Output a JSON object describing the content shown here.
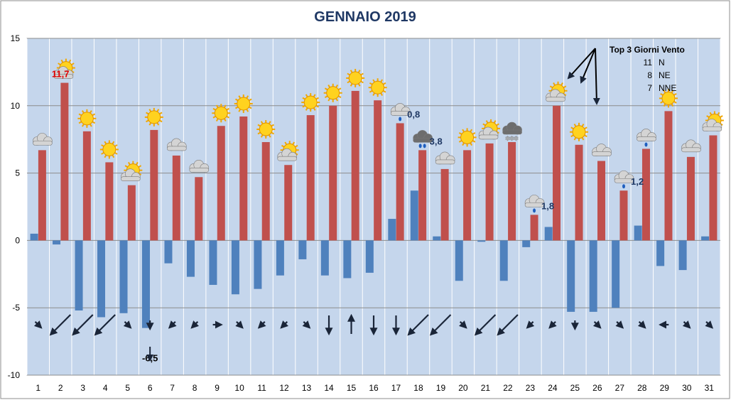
{
  "chart_data": {
    "type": "bar",
    "title": "GENNAIO 2019",
    "categories": [
      "1",
      "2",
      "3",
      "4",
      "5",
      "6",
      "7",
      "8",
      "9",
      "10",
      "11",
      "12",
      "13",
      "14",
      "15",
      "16",
      "17",
      "18",
      "19",
      "20",
      "21",
      "22",
      "23",
      "24",
      "25",
      "26",
      "27",
      "28",
      "29",
      "30",
      "31"
    ],
    "series": [
      {
        "values": [
          0.5,
          -0.3,
          -5.2,
          -5.7,
          -5.4,
          -6.5,
          -1.7,
          -2.7,
          -3.3,
          -4.0,
          -3.6,
          -2.6,
          -1.4,
          -2.6,
          -2.8,
          -2.4,
          1.6,
          3.7,
          0.3,
          -3.0,
          -0.1,
          -3.0,
          -0.5,
          1.0,
          -5.3,
          -5.3,
          -5.0,
          1.1,
          -1.9,
          -2.2,
          0.3
        ]
      },
      {
        "values": [
          6.7,
          11.7,
          8.1,
          5.8,
          4.1,
          8.2,
          6.3,
          4.7,
          8.5,
          9.2,
          7.3,
          5.6,
          9.3,
          10.0,
          11.1,
          10.4,
          8.7,
          6.7,
          5.3,
          6.7,
          7.2,
          7.3,
          1.9,
          10.0,
          7.1,
          5.9,
          3.7,
          6.8,
          9.6,
          6.2,
          7.8
        ]
      }
    ],
    "ylim": [
      -10,
      15
    ],
    "yticks": [
      "-10",
      "-5",
      "0",
      "5",
      "10",
      "15"
    ],
    "grid": true,
    "value_labels": [
      {
        "day": "2",
        "text": "11,7",
        "color": "#e00000"
      },
      {
        "day": "6",
        "text": "-6,5",
        "color": "#000000"
      },
      {
        "day": "17",
        "text": "0,8",
        "color": "#1f3864"
      },
      {
        "day": "18",
        "text": "3,8",
        "color": "#1f3864"
      },
      {
        "day": "23",
        "text": "1,8",
        "color": "#1f3864"
      },
      {
        "day": "27",
        "text": "1,2",
        "color": "#1f3864"
      }
    ],
    "weather_icons": [
      "cloud",
      "sun-cloud",
      "sun",
      "sun",
      "sun-cloud",
      "sun",
      "cloud",
      "cloud",
      "sun",
      "sun",
      "sun",
      "sun-cloud",
      "sun",
      "sun",
      "sun",
      "sun",
      "rain",
      "storm",
      "cloud",
      "sun",
      "sun-cloud",
      "snow",
      "rain",
      "sun-cloud",
      "sun",
      "cloud",
      "rain",
      "rain",
      "sun",
      "cloud",
      "sun-cloud"
    ],
    "wind_arrows": [
      "SE",
      "SW",
      "SW",
      "SW",
      "SE",
      "S",
      "SW",
      "SW",
      "E",
      "SE",
      "SW",
      "SW",
      "SE",
      "S",
      "N",
      "S",
      "S",
      "SW",
      "SW",
      "SE",
      "SW",
      "SW",
      "SW",
      "SW",
      "S",
      "SE",
      "SE",
      "SE",
      "W",
      "SE",
      "SE"
    ],
    "annotation": {
      "title": "Top 3 Giorni Vento",
      "rows": [
        {
          "day": "11",
          "dir": "N"
        },
        {
          "day": "8",
          "dir": "NE"
        },
        {
          "day": "7",
          "dir": "NNE"
        }
      ]
    },
    "colors": {
      "plot_bg": "#c5d6ec",
      "min_bar": "#4f81bd",
      "max_bar": "#c0504d",
      "title": "#1f3864",
      "arrow": "#1a2538"
    }
  }
}
